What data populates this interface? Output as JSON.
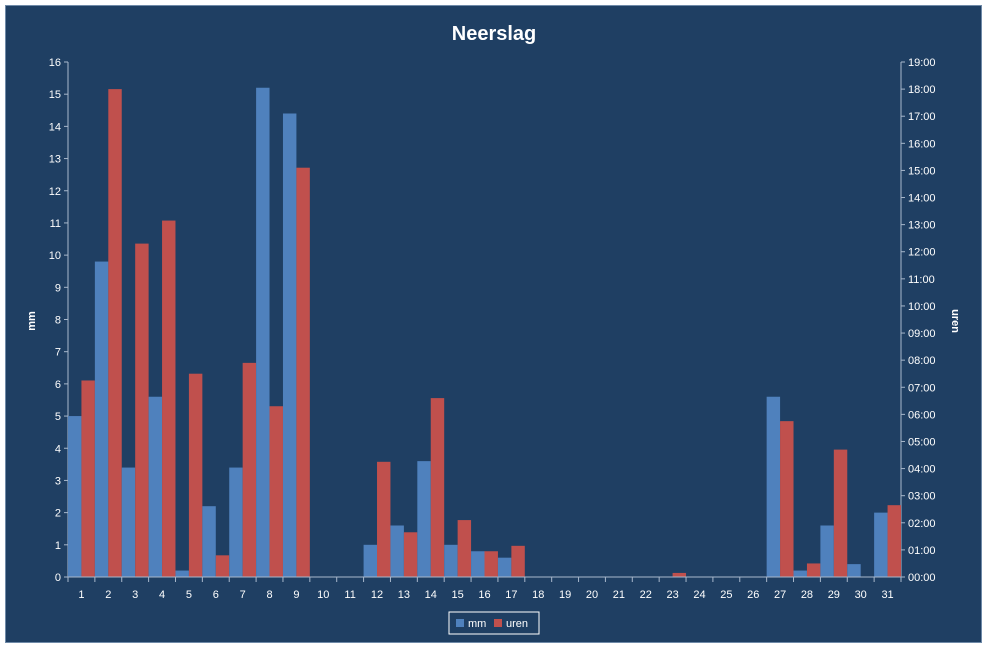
{
  "chart_data": {
    "type": "bar",
    "title": "Neerslag",
    "xlabel": "",
    "ylabel": "mm",
    "y2label": "uren",
    "categories": [
      "1",
      "2",
      "3",
      "4",
      "5",
      "6",
      "7",
      "8",
      "9",
      "10",
      "11",
      "12",
      "13",
      "14",
      "15",
      "16",
      "17",
      "18",
      "19",
      "20",
      "21",
      "22",
      "23",
      "24",
      "25",
      "26",
      "27",
      "28",
      "29",
      "30",
      "31"
    ],
    "ylim": [
      0,
      16
    ],
    "y2lim": [
      "00:00",
      "19:00"
    ],
    "y2ticks": [
      "00:00",
      "01:00",
      "02:00",
      "03:00",
      "04:00",
      "05:00",
      "06:00",
      "07:00",
      "08:00",
      "09:00",
      "10:00",
      "11:00",
      "12:00",
      "13:00",
      "14:00",
      "15:00",
      "16:00",
      "17:00",
      "18:00",
      "19:00"
    ],
    "series": [
      {
        "name": "mm",
        "axis": "left",
        "color": "#4f81bd",
        "values": [
          5.0,
          9.8,
          3.4,
          5.6,
          0.2,
          2.2,
          3.4,
          15.2,
          14.4,
          0,
          0,
          1.0,
          1.6,
          3.6,
          1.0,
          0.8,
          0.6,
          0,
          0,
          0,
          0,
          0,
          0,
          0,
          0,
          0,
          5.6,
          0.2,
          1.6,
          0.4,
          2.0
        ]
      },
      {
        "name": "uren",
        "axis": "right",
        "unit": "hours",
        "color": "#c0504d",
        "values": [
          7.25,
          18.0,
          12.3,
          13.15,
          7.5,
          0.8,
          7.9,
          6.3,
          15.1,
          0,
          0,
          4.25,
          1.65,
          6.6,
          2.1,
          0.95,
          1.15,
          0,
          0,
          0,
          0,
          0,
          0.15,
          0,
          0,
          0,
          5.75,
          0.5,
          4.7,
          0,
          2.65
        ]
      }
    ],
    "grid": false,
    "legend": "bottom"
  },
  "colors": {
    "background": "#1f3f63",
    "axis": "#a8b8cc",
    "text": "#ffffff"
  }
}
